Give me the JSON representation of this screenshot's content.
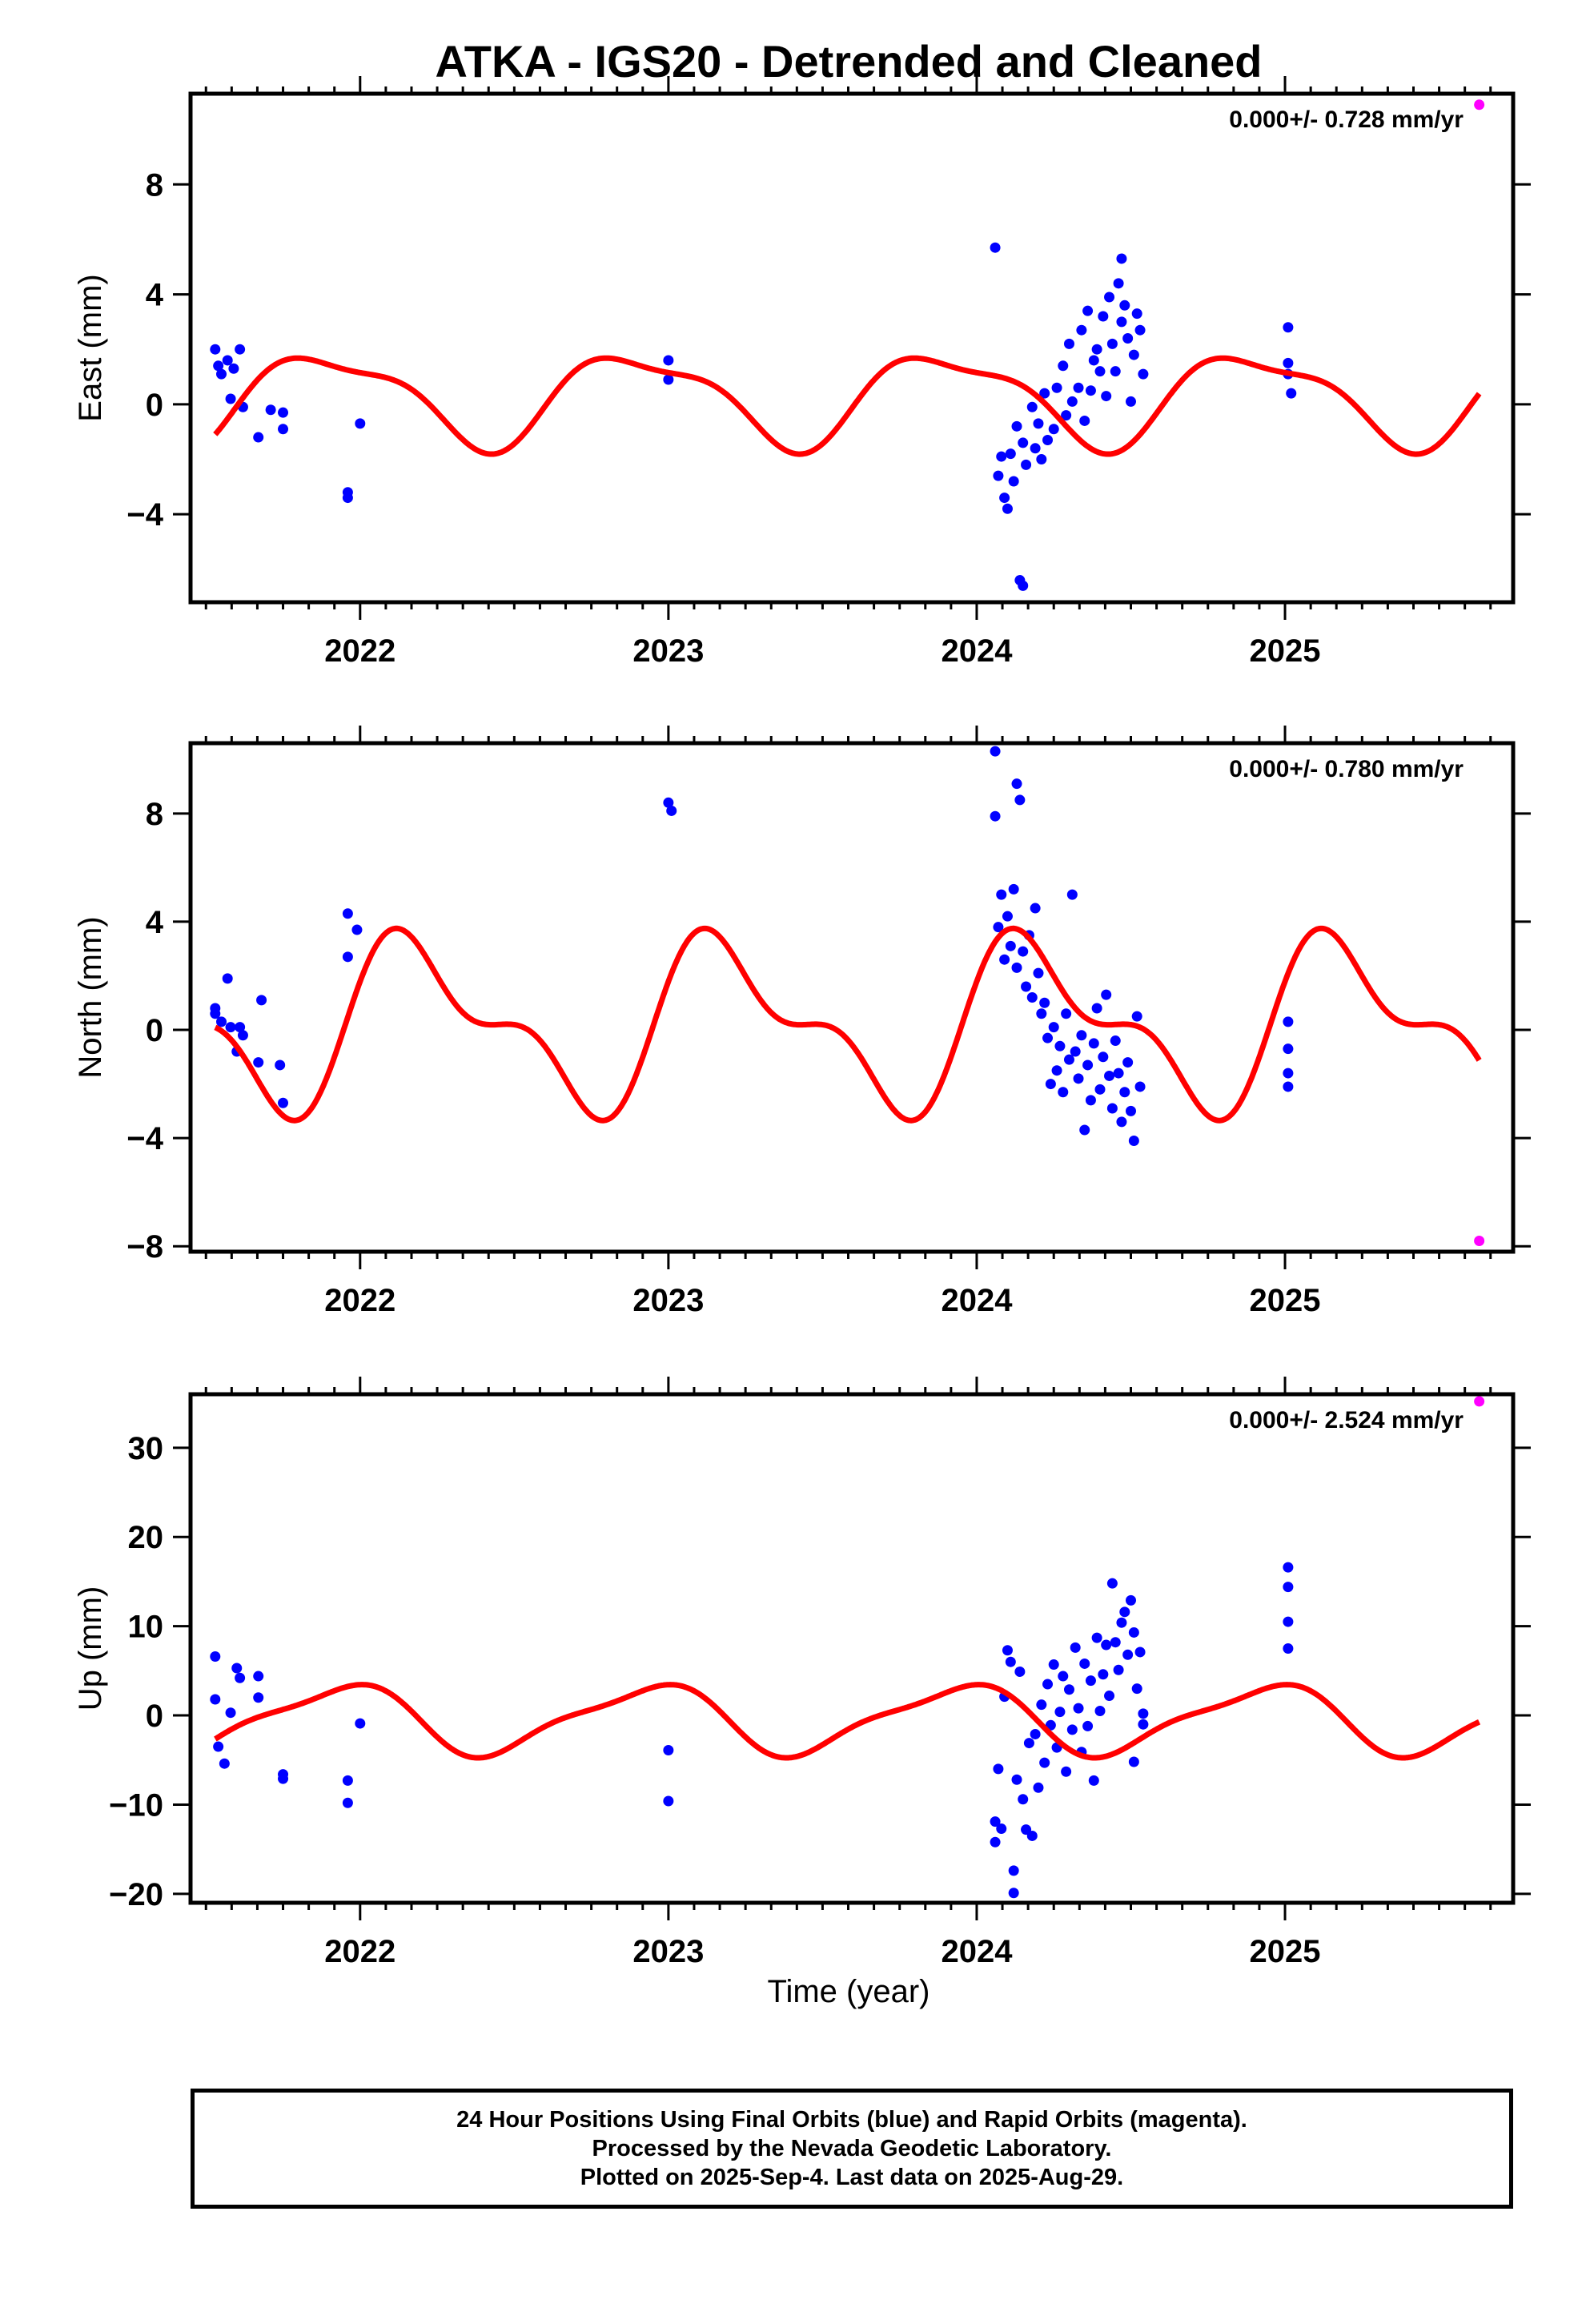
{
  "title": "ATKA - IGS20 - Detrended and Cleaned",
  "xlabel": "Time (year)",
  "footer": [
    "24 Hour Positions Using Final Orbits (blue) and Rapid Orbits (magenta).",
    "Processed by the Nevada Geodetic Laboratory.",
    "Plotted on 2025-Sep-4. Last data on 2025-Aug-29."
  ],
  "colors": {
    "final": "#0000ff",
    "rapid": "#ff00ff",
    "model": "#ff0000",
    "axis": "#000000"
  },
  "chart_data": [
    {
      "type": "scatter",
      "ylabel": "East (mm)",
      "rate": "0.000+/- 0.728 mm/yr",
      "xlim": [
        2021.45,
        2025.74
      ],
      "ylim": [
        -7.2,
        11.3
      ],
      "yticks": [
        -4,
        0,
        4,
        8
      ],
      "xticks": [
        2022,
        2023,
        2024,
        2025
      ],
      "model": {
        "offset": 0.25,
        "a1": 1.6,
        "phi1": 2.2,
        "a2": 0.5,
        "phi2": -0.9
      },
      "rapid": [
        [
          2025.63,
          10.9
        ]
      ],
      "final": [
        [
          2021.53,
          2.0
        ],
        [
          2021.54,
          1.4
        ],
        [
          2021.55,
          1.1
        ],
        [
          2021.57,
          1.6
        ],
        [
          2021.58,
          0.2
        ],
        [
          2021.59,
          1.3
        ],
        [
          2021.61,
          2.0
        ],
        [
          2021.62,
          -0.1
        ],
        [
          2021.67,
          -1.2
        ],
        [
          2021.71,
          -0.2
        ],
        [
          2021.75,
          -0.9
        ],
        [
          2021.75,
          -0.3
        ],
        [
          2021.96,
          -3.2
        ],
        [
          2021.96,
          -3.4
        ],
        [
          2022.0,
          -0.7
        ],
        [
          2023.0,
          1.6
        ],
        [
          2023.0,
          0.9
        ],
        [
          2024.06,
          5.7
        ],
        [
          2024.07,
          -2.6
        ],
        [
          2024.08,
          -1.9
        ],
        [
          2024.09,
          -3.4
        ],
        [
          2024.1,
          -3.8
        ],
        [
          2024.11,
          -1.8
        ],
        [
          2024.12,
          -2.8
        ],
        [
          2024.13,
          -0.8
        ],
        [
          2024.14,
          -6.4
        ],
        [
          2024.15,
          -6.6
        ],
        [
          2024.15,
          -1.4
        ],
        [
          2024.16,
          -2.2
        ],
        [
          2024.18,
          -0.1
        ],
        [
          2024.19,
          -1.6
        ],
        [
          2024.2,
          -0.7
        ],
        [
          2024.21,
          -2.0
        ],
        [
          2024.22,
          0.4
        ],
        [
          2024.23,
          -1.3
        ],
        [
          2024.25,
          -0.9
        ],
        [
          2024.26,
          0.6
        ],
        [
          2024.28,
          1.4
        ],
        [
          2024.29,
          -0.4
        ],
        [
          2024.3,
          2.2
        ],
        [
          2024.31,
          0.1
        ],
        [
          2024.33,
          0.6
        ],
        [
          2024.34,
          2.7
        ],
        [
          2024.35,
          -0.6
        ],
        [
          2024.36,
          3.4
        ],
        [
          2024.37,
          0.5
        ],
        [
          2024.38,
          1.6
        ],
        [
          2024.39,
          2.0
        ],
        [
          2024.4,
          1.2
        ],
        [
          2024.41,
          3.2
        ],
        [
          2024.42,
          0.3
        ],
        [
          2024.43,
          3.9
        ],
        [
          2024.44,
          2.2
        ],
        [
          2024.45,
          1.2
        ],
        [
          2024.46,
          4.4
        ],
        [
          2024.47,
          5.3
        ],
        [
          2024.47,
          3.0
        ],
        [
          2024.48,
          3.6
        ],
        [
          2024.49,
          2.4
        ],
        [
          2024.5,
          0.1
        ],
        [
          2024.51,
          1.8
        ],
        [
          2024.52,
          3.3
        ],
        [
          2024.53,
          2.7
        ],
        [
          2024.54,
          1.1
        ],
        [
          2025.01,
          2.8
        ],
        [
          2025.01,
          1.5
        ],
        [
          2025.01,
          1.1
        ],
        [
          2025.02,
          0.4
        ]
      ]
    },
    {
      "type": "scatter",
      "ylabel": "North (mm)",
      "rate": "0.000+/- 0.780 mm/yr",
      "xlim": [
        2021.45,
        2025.74
      ],
      "ylim": [
        -8.2,
        10.6
      ],
      "yticks": [
        -8,
        -4,
        0,
        4,
        8
      ],
      "xticks": [
        2022,
        2023,
        2024,
        2025
      ],
      "model": {
        "offset": 0.2,
        "a1": 2.7,
        "phi1": 0.3,
        "a2": 1.4,
        "phi2": 0.6
      },
      "rapid": [
        [
          2025.63,
          -7.8
        ]
      ],
      "final": [
        [
          2021.53,
          0.6
        ],
        [
          2021.53,
          0.8
        ],
        [
          2021.55,
          0.3
        ],
        [
          2021.57,
          1.9
        ],
        [
          2021.58,
          0.1
        ],
        [
          2021.6,
          -0.8
        ],
        [
          2021.61,
          0.1
        ],
        [
          2021.62,
          -0.2
        ],
        [
          2021.67,
          -1.2
        ],
        [
          2021.68,
          1.1
        ],
        [
          2021.74,
          -1.3
        ],
        [
          2021.75,
          -2.7
        ],
        [
          2021.96,
          4.3
        ],
        [
          2021.96,
          2.7
        ],
        [
          2021.99,
          3.7
        ],
        [
          2023.0,
          8.4
        ],
        [
          2023.01,
          8.1
        ],
        [
          2024.06,
          10.3
        ],
        [
          2024.06,
          7.9
        ],
        [
          2024.07,
          3.8
        ],
        [
          2024.08,
          5.0
        ],
        [
          2024.09,
          2.6
        ],
        [
          2024.1,
          4.2
        ],
        [
          2024.11,
          3.1
        ],
        [
          2024.12,
          5.2
        ],
        [
          2024.13,
          2.3
        ],
        [
          2024.13,
          9.1
        ],
        [
          2024.14,
          8.5
        ],
        [
          2024.15,
          2.9
        ],
        [
          2024.16,
          1.6
        ],
        [
          2024.17,
          3.5
        ],
        [
          2024.18,
          1.2
        ],
        [
          2024.19,
          4.5
        ],
        [
          2024.2,
          2.1
        ],
        [
          2024.21,
          0.6
        ],
        [
          2024.22,
          1.0
        ],
        [
          2024.23,
          -0.3
        ],
        [
          2024.24,
          -2.0
        ],
        [
          2024.25,
          0.1
        ],
        [
          2024.26,
          -1.5
        ],
        [
          2024.27,
          -0.6
        ],
        [
          2024.28,
          -2.3
        ],
        [
          2024.29,
          0.6
        ],
        [
          2024.3,
          -1.1
        ],
        [
          2024.31,
          5.0
        ],
        [
          2024.32,
          -0.8
        ],
        [
          2024.33,
          -1.8
        ],
        [
          2024.34,
          -0.2
        ],
        [
          2024.35,
          -3.7
        ],
        [
          2024.36,
          -1.3
        ],
        [
          2024.37,
          -2.6
        ],
        [
          2024.38,
          -0.5
        ],
        [
          2024.39,
          0.8
        ],
        [
          2024.4,
          -2.2
        ],
        [
          2024.41,
          -1.0
        ],
        [
          2024.42,
          1.3
        ],
        [
          2024.43,
          -1.7
        ],
        [
          2024.44,
          -2.9
        ],
        [
          2024.45,
          -0.4
        ],
        [
          2024.46,
          -1.6
        ],
        [
          2024.47,
          -3.4
        ],
        [
          2024.48,
          -2.3
        ],
        [
          2024.49,
          -1.2
        ],
        [
          2024.5,
          -3.0
        ],
        [
          2024.51,
          -4.1
        ],
        [
          2024.52,
          0.5
        ],
        [
          2024.53,
          -2.1
        ],
        [
          2025.01,
          0.3
        ],
        [
          2025.01,
          -0.7
        ],
        [
          2025.01,
          -1.6
        ],
        [
          2025.01,
          -2.1
        ]
      ]
    },
    {
      "type": "scatter",
      "ylabel": "Up (mm)",
      "rate": "0.000+/- 2.524 mm/yr",
      "xlim": [
        2021.45,
        2025.74
      ],
      "ylim": [
        -21,
        36
      ],
      "yticks": [
        -20,
        -10,
        0,
        10,
        20,
        30
      ],
      "xticks": [
        2022,
        2023,
        2024,
        2025
      ],
      "model": {
        "offset": -0.4,
        "a1": 3.7,
        "phi1": 2.0,
        "a2": 1.0,
        "phi2": 0.5
      },
      "rapid": [
        [
          2025.63,
          35.2
        ]
      ],
      "final": [
        [
          2021.53,
          6.6
        ],
        [
          2021.53,
          1.8
        ],
        [
          2021.54,
          -3.5
        ],
        [
          2021.56,
          -5.4
        ],
        [
          2021.58,
          0.3
        ],
        [
          2021.6,
          5.3
        ],
        [
          2021.61,
          4.2
        ],
        [
          2021.67,
          4.4
        ],
        [
          2021.67,
          2.0
        ],
        [
          2021.75,
          -6.6
        ],
        [
          2021.75,
          -7.1
        ],
        [
          2021.96,
          -7.3
        ],
        [
          2021.96,
          -9.8
        ],
        [
          2022.0,
          -0.9
        ],
        [
          2023.0,
          -3.9
        ],
        [
          2023.0,
          -9.6
        ],
        [
          2024.06,
          -11.9
        ],
        [
          2024.06,
          -14.2
        ],
        [
          2024.07,
          -6.0
        ],
        [
          2024.08,
          -12.7
        ],
        [
          2024.09,
          2.1
        ],
        [
          2024.1,
          7.3
        ],
        [
          2024.11,
          6.0
        ],
        [
          2024.12,
          -17.4
        ],
        [
          2024.12,
          -19.9
        ],
        [
          2024.13,
          -7.2
        ],
        [
          2024.14,
          4.9
        ],
        [
          2024.15,
          -9.4
        ],
        [
          2024.16,
          -12.8
        ],
        [
          2024.17,
          -3.1
        ],
        [
          2024.18,
          -13.5
        ],
        [
          2024.19,
          -2.1
        ],
        [
          2024.2,
          -8.1
        ],
        [
          2024.21,
          1.2
        ],
        [
          2024.22,
          -5.3
        ],
        [
          2024.23,
          3.5
        ],
        [
          2024.24,
          -1.1
        ],
        [
          2024.25,
          5.7
        ],
        [
          2024.26,
          -3.6
        ],
        [
          2024.27,
          0.4
        ],
        [
          2024.28,
          4.4
        ],
        [
          2024.29,
          -6.3
        ],
        [
          2024.3,
          2.9
        ],
        [
          2024.31,
          -1.6
        ],
        [
          2024.32,
          7.6
        ],
        [
          2024.33,
          0.8
        ],
        [
          2024.34,
          -4.1
        ],
        [
          2024.35,
          5.8
        ],
        [
          2024.36,
          -1.2
        ],
        [
          2024.37,
          3.9
        ],
        [
          2024.38,
          -7.3
        ],
        [
          2024.39,
          8.7
        ],
        [
          2024.4,
          0.5
        ],
        [
          2024.41,
          4.6
        ],
        [
          2024.42,
          7.9
        ],
        [
          2024.43,
          2.2
        ],
        [
          2024.44,
          14.8
        ],
        [
          2024.45,
          8.2
        ],
        [
          2024.46,
          5.1
        ],
        [
          2024.47,
          10.4
        ],
        [
          2024.48,
          11.6
        ],
        [
          2024.49,
          6.8
        ],
        [
          2024.5,
          12.9
        ],
        [
          2024.51,
          -5.2
        ],
        [
          2024.51,
          9.3
        ],
        [
          2024.52,
          3.0
        ],
        [
          2024.53,
          7.1
        ],
        [
          2024.54,
          -1.0
        ],
        [
          2024.54,
          0.2
        ],
        [
          2025.01,
          16.6
        ],
        [
          2025.01,
          14.4
        ],
        [
          2025.01,
          10.5
        ],
        [
          2025.01,
          7.5
        ]
      ]
    }
  ]
}
